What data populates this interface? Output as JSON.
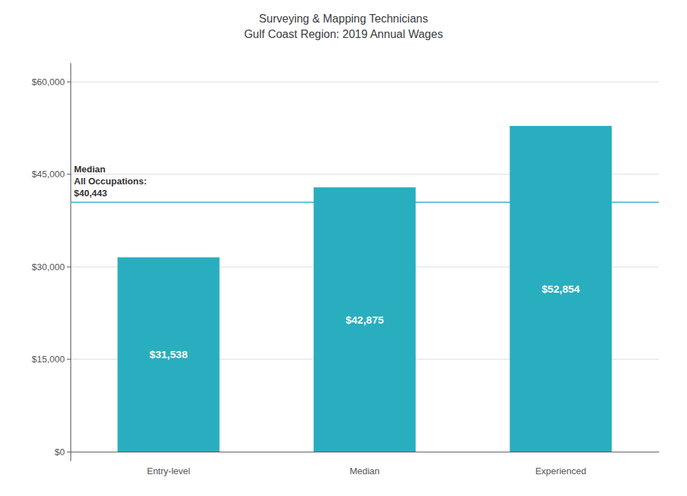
{
  "chart_data": {
    "type": "bar",
    "title": "Surveying & Mapping Technicians\nGulf Coast Region: 2019 Annual Wages",
    "categories": [
      "Entry-level",
      "Median",
      "Experienced"
    ],
    "values": [
      31538,
      42875,
      52854
    ],
    "value_labels": [
      "$31,538",
      "$42,875",
      "$52,854"
    ],
    "data_labels": true,
    "color": "#29AEBF",
    "ylim": [
      -1474.2,
      63000
    ],
    "yticks": [
      {
        "value": 0,
        "label": "$0"
      },
      {
        "value": 15000,
        "label": "$15,000"
      },
      {
        "value": 30000,
        "label": "$30,000"
      },
      {
        "value": 45000,
        "label": "$45,000"
      },
      {
        "value": 60000,
        "label": "$60,000"
      }
    ],
    "grid": true,
    "annotations": [
      {
        "text": "Median\nAll Occupations:\n$40,443",
        "y": 40443
      }
    ]
  }
}
